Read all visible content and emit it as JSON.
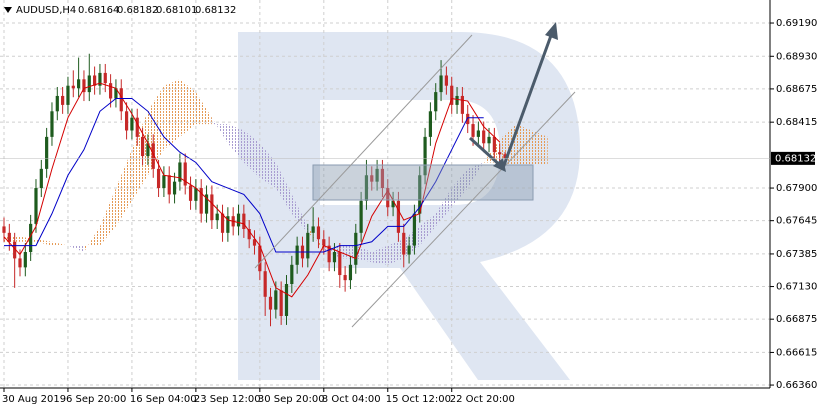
{
  "chart_data": {
    "type": "candlestick",
    "title": "AUDUSD,H4",
    "categories": [
      "30 Aug 2019",
      null,
      null,
      null,
      null,
      null,
      null,
      null,
      null,
      null,
      null,
      null,
      "6 Sep 20:00",
      null,
      null,
      null,
      null,
      null,
      null,
      null,
      null,
      null,
      null,
      null,
      "16 Sep 04:00",
      null,
      null,
      null,
      null,
      null,
      null,
      null,
      null,
      null,
      null,
      null,
      "23 Sep 12:00",
      null,
      null,
      null,
      null,
      null,
      null,
      null,
      null,
      null,
      null,
      null,
      "30 Sep 20:00",
      null,
      null,
      null,
      null,
      null,
      null,
      null,
      null,
      null,
      null,
      null,
      "8 Oct 04:00",
      null,
      null,
      null,
      null,
      null,
      null,
      null,
      null,
      null,
      null,
      null,
      "15 Oct 12:00",
      null,
      null,
      null,
      null,
      null,
      null,
      null,
      null,
      null,
      null,
      null,
      "22 Oct 20:00",
      null,
      null,
      null,
      null,
      null,
      null,
      null,
      null,
      null,
      null
    ],
    "open": [
      0.676,
      0.6755,
      0.6748,
      0.6735,
      0.6728,
      0.674,
      0.6762,
      0.679,
      0.6805,
      0.683,
      0.685,
      0.6862,
      0.6855,
      0.687,
      0.6868,
      0.6875,
      0.6865,
      0.6878,
      0.687,
      0.688,
      0.6872,
      0.686,
      0.6868,
      0.685,
      0.6835,
      0.6845,
      0.683,
      0.6815,
      0.6825,
      0.6805,
      0.679,
      0.68,
      0.6785,
      0.6795,
      0.681,
      0.6792,
      0.678,
      0.679,
      0.677,
      0.6785,
      0.6765,
      0.677,
      0.6755,
      0.6768,
      0.676,
      0.677,
      0.6758,
      0.675,
      0.6745,
      0.6725,
      0.6705,
      0.6695,
      0.671,
      0.669,
      0.6715,
      0.673,
      0.6745,
      0.6735,
      0.6755,
      0.676,
      0.675,
      0.6745,
      0.6732,
      0.674,
      0.6722,
      0.6718,
      0.673,
      0.6755,
      0.678,
      0.68,
      0.6795,
      0.6805,
      0.679,
      0.6775,
      0.678,
      0.6755,
      0.6738,
      0.6745,
      0.677,
      0.68,
      0.683,
      0.685,
      0.6865,
      0.6878,
      0.687,
      0.6855,
      0.6862,
      0.6848,
      0.684,
      0.683,
      0.6835,
      0.6825,
      0.683,
      0.6818,
      0.68164
    ],
    "high": [
      0.6767,
      0.6762,
      0.6755,
      0.6742,
      0.6747,
      0.6769,
      0.6797,
      0.6812,
      0.6837,
      0.6857,
      0.6869,
      0.6869,
      0.6877,
      0.6882,
      0.6892,
      0.6882,
      0.6895,
      0.6885,
      0.6887,
      0.6887,
      0.6879,
      0.6875,
      0.6875,
      0.6857,
      0.6852,
      0.6852,
      0.6837,
      0.6832,
      0.6832,
      0.6812,
      0.6807,
      0.6807,
      0.6802,
      0.6817,
      0.6817,
      0.6799,
      0.6797,
      0.6797,
      0.6792,
      0.6792,
      0.6777,
      0.6777,
      0.6775,
      0.6775,
      0.6777,
      0.6777,
      0.6765,
      0.6757,
      0.6752,
      0.6732,
      0.6712,
      0.6717,
      0.6717,
      0.6722,
      0.6737,
      0.6752,
      0.6752,
      0.6762,
      0.6775,
      0.6767,
      0.6757,
      0.6752,
      0.6747,
      0.6747,
      0.6729,
      0.6737,
      0.6762,
      0.6787,
      0.6812,
      0.6807,
      0.6812,
      0.6812,
      0.6797,
      0.6787,
      0.6787,
      0.6762,
      0.6752,
      0.6777,
      0.6807,
      0.6837,
      0.6857,
      0.6872,
      0.689,
      0.6885,
      0.6877,
      0.6869,
      0.6869,
      0.6855,
      0.6847,
      0.6842,
      0.6842,
      0.6837,
      0.6837,
      0.6825,
      0.68182
    ],
    "low": [
      0.6748,
      0.6741,
      0.6712,
      0.6721,
      0.6721,
      0.6733,
      0.6755,
      0.6783,
      0.6798,
      0.6823,
      0.6843,
      0.6848,
      0.6848,
      0.6861,
      0.6861,
      0.6858,
      0.6858,
      0.6863,
      0.6863,
      0.6865,
      0.6853,
      0.6853,
      0.6843,
      0.6828,
      0.6828,
      0.6823,
      0.6808,
      0.6808,
      0.6798,
      0.6783,
      0.6783,
      0.6778,
      0.6778,
      0.6788,
      0.6785,
      0.6773,
      0.6773,
      0.6763,
      0.6763,
      0.6758,
      0.6758,
      0.6748,
      0.6748,
      0.6753,
      0.6753,
      0.6751,
      0.6743,
      0.6738,
      0.6718,
      0.669,
      0.6682,
      0.6688,
      0.6683,
      0.6683,
      0.6708,
      0.6723,
      0.6728,
      0.6728,
      0.6748,
      0.6743,
      0.6738,
      0.6725,
      0.6725,
      0.6712,
      0.6709,
      0.6711,
      0.6723,
      0.6748,
      0.6773,
      0.6788,
      0.6788,
      0.6783,
      0.6768,
      0.6768,
      0.6748,
      0.6728,
      0.6731,
      0.6738,
      0.6763,
      0.6793,
      0.6823,
      0.6843,
      0.6858,
      0.6863,
      0.6848,
      0.6848,
      0.6841,
      0.6833,
      0.6823,
      0.6823,
      0.6818,
      0.6818,
      0.6811,
      0.6809,
      0.68101
    ],
    "close": [
      0.6755,
      0.6748,
      0.6735,
      0.6728,
      0.674,
      0.6762,
      0.679,
      0.6805,
      0.683,
      0.685,
      0.6862,
      0.6855,
      0.687,
      0.6868,
      0.6875,
      0.6865,
      0.6878,
      0.687,
      0.688,
      0.6872,
      0.686,
      0.6868,
      0.685,
      0.6835,
      0.6845,
      0.683,
      0.6815,
      0.6825,
      0.6805,
      0.679,
      0.68,
      0.6785,
      0.6795,
      0.681,
      0.6792,
      0.678,
      0.679,
      0.677,
      0.6785,
      0.6765,
      0.677,
      0.6755,
      0.6768,
      0.676,
      0.677,
      0.6758,
      0.675,
      0.6745,
      0.6725,
      0.6705,
      0.6695,
      0.671,
      0.669,
      0.6715,
      0.673,
      0.6745,
      0.6735,
      0.6755,
      0.676,
      0.675,
      0.6745,
      0.6732,
      0.674,
      0.6722,
      0.6718,
      0.673,
      0.6755,
      0.678,
      0.68,
      0.6795,
      0.6805,
      0.679,
      0.6775,
      0.678,
      0.6755,
      0.6738,
      0.6745,
      0.677,
      0.68,
      0.683,
      0.685,
      0.6865,
      0.6878,
      0.687,
      0.6855,
      0.6862,
      0.6848,
      0.684,
      0.683,
      0.6835,
      0.6825,
      0.683,
      0.6818,
      0.68164,
      0.68132
    ],
    "colors": {
      "up": "#1e5b1e",
      "down": "#c62828"
    },
    "ylim": [
      0.66337,
      0.6937
    ],
    "yticks": [
      {
        "value": 0.6919,
        "label": "0.69190"
      },
      {
        "value": 0.6893,
        "label": "0.68930"
      },
      {
        "value": 0.68675,
        "label": "0.68675"
      },
      {
        "value": 0.68415,
        "label": "0.68415"
      },
      {
        "value": 0.679,
        "label": "0.67900"
      },
      {
        "value": 0.67645,
        "label": "0.67645"
      },
      {
        "value": 0.67385,
        "label": "0.67385"
      },
      {
        "value": 0.6713,
        "label": "0.67130"
      },
      {
        "value": 0.66875,
        "label": "0.66875"
      },
      {
        "value": 0.66615,
        "label": "0.66615"
      },
      {
        "value": 0.6636,
        "label": "0.66360"
      }
    ],
    "grid": true,
    "lines": [
      {
        "color": "#d40000",
        "x": [
          0,
          3,
          6,
          9,
          12,
          15,
          18,
          21,
          24,
          27,
          30,
          33,
          36,
          39,
          42,
          45,
          48,
          51,
          54,
          57,
          60,
          63,
          66,
          69,
          72,
          75,
          78,
          81,
          84,
          87,
          90,
          93
        ],
        "values": [
          0.6752,
          0.6738,
          0.676,
          0.6805,
          0.6845,
          0.6868,
          0.6872,
          0.6868,
          0.6848,
          0.6825,
          0.68,
          0.6798,
          0.679,
          0.6778,
          0.6765,
          0.6762,
          0.6745,
          0.6712,
          0.6705,
          0.6722,
          0.6745,
          0.674,
          0.6735,
          0.6768,
          0.6788,
          0.6765,
          0.677,
          0.6825,
          0.686,
          0.6858,
          0.6838,
          0.6826
        ]
      },
      {
        "color": "#0000c8",
        "x": [
          0,
          3,
          6,
          9,
          12,
          15,
          18,
          21,
          24,
          27,
          30,
          33,
          36,
          39,
          42,
          45,
          48,
          51,
          54,
          57,
          60,
          63,
          66,
          69,
          72,
          75,
          78,
          81,
          84,
          87,
          90
        ],
        "values": [
          0.6745,
          0.6745,
          0.6745,
          0.677,
          0.68,
          0.682,
          0.685,
          0.686,
          0.686,
          0.685,
          0.683,
          0.6818,
          0.681,
          0.6795,
          0.679,
          0.6785,
          0.677,
          0.674,
          0.674,
          0.674,
          0.674,
          0.6745,
          0.6745,
          0.6748,
          0.676,
          0.676,
          0.6775,
          0.6795,
          0.682,
          0.6845,
          0.6845
        ]
      }
    ],
    "cloud": {
      "colors": {
        "bull": "#e59a55",
        "bear": "#a89cd0"
      },
      "x": [
        0,
        3,
        6,
        9,
        12,
        15,
        18,
        21,
        24,
        27,
        30,
        33,
        36,
        39,
        42,
        45,
        48,
        51,
        54,
        57,
        60,
        63,
        66,
        69,
        72,
        75,
        78,
        81,
        84,
        87,
        90,
        93,
        96,
        99,
        102
      ],
      "span_a": [
        0.6752,
        0.6752,
        0.675,
        0.6748,
        0.6745,
        0.674,
        0.676,
        0.679,
        0.682,
        0.685,
        0.687,
        0.6875,
        0.6865,
        0.6845,
        0.6825,
        0.681,
        0.6798,
        0.679,
        0.677,
        0.6755,
        0.6745,
        0.6735,
        0.6735,
        0.6732,
        0.673,
        0.6735,
        0.6745,
        0.676,
        0.6775,
        0.679,
        0.681,
        0.6828,
        0.684,
        0.6835,
        0.683
      ],
      "span_b": [
        0.6748,
        0.6748,
        0.6748,
        0.6745,
        0.6745,
        0.6745,
        0.6745,
        0.676,
        0.678,
        0.68,
        0.682,
        0.683,
        0.684,
        0.684,
        0.684,
        0.6835,
        0.6825,
        0.681,
        0.6785,
        0.676,
        0.674,
        0.6745,
        0.6745,
        0.674,
        0.6745,
        0.675,
        0.676,
        0.677,
        0.679,
        0.6805,
        0.681,
        0.681,
        0.6808,
        0.6808,
        0.6808
      ]
    }
  }
}
